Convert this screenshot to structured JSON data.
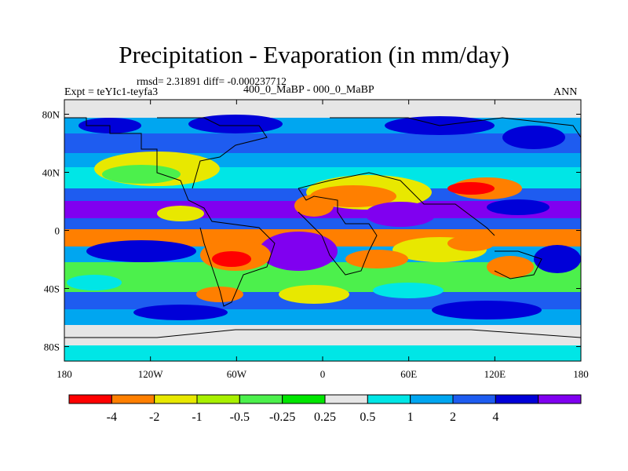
{
  "title": "Precipitation - Evaporation (in mm/day)",
  "stats": "rmsd= 2.31891 diff= -0.000237712",
  "left_label": "Expt = teYIc1-teyfa3",
  "center_label": "400_0_MaBP - 000_0_MaBP",
  "right_label": "ANN",
  "map": {
    "lat_ticks": [
      {
        "value": 80,
        "label": "80N"
      },
      {
        "value": 40,
        "label": "40N"
      },
      {
        "value": 0,
        "label": "0"
      },
      {
        "value": -40,
        "label": "40S"
      },
      {
        "value": -80,
        "label": "80S"
      }
    ],
    "lon_ticks": [
      {
        "value": -180,
        "label": "180"
      },
      {
        "value": -120,
        "label": "120W"
      },
      {
        "value": -60,
        "label": "60W"
      },
      {
        "value": 0,
        "label": "0"
      },
      {
        "value": 60,
        "label": "60E"
      },
      {
        "value": 120,
        "label": "120E"
      },
      {
        "value": 180,
        "label": "180"
      }
    ],
    "lat_range": [
      -90,
      90
    ],
    "lon_range": [
      -180,
      180
    ]
  },
  "colorbar": {
    "colors": [
      "#ff0000",
      "#ff7f00",
      "#e8e800",
      "#a8f000",
      "#4cf04c",
      "#00e600",
      "#e6e6e6",
      "#00e6e6",
      "#00a6f0",
      "#1e5cf0",
      "#0000d8",
      "#8000f0"
    ],
    "labels": [
      "-4",
      "-2",
      "-1",
      "-0.5",
      "-0.25",
      "0.25",
      "0.5",
      "1",
      "2",
      "4"
    ]
  }
}
